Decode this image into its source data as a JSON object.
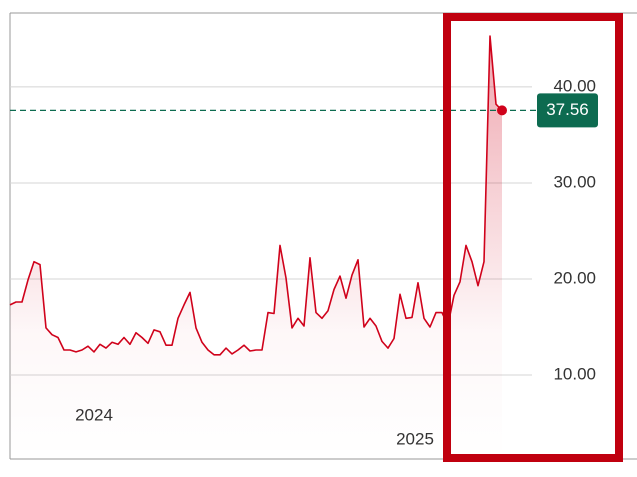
{
  "chart_data": {
    "type": "line",
    "x": [
      0,
      1,
      2,
      3,
      4,
      5,
      6,
      7,
      8,
      9,
      10,
      11,
      12,
      13,
      14,
      15,
      16,
      17,
      18,
      19,
      20,
      21,
      22,
      23,
      24,
      25,
      26,
      27,
      28,
      29,
      30,
      31,
      32,
      33,
      34,
      35,
      36,
      37,
      38,
      39,
      40,
      41,
      42,
      43,
      44,
      45,
      46,
      47,
      48,
      49,
      50,
      51,
      52,
      53,
      54,
      55,
      56,
      57,
      58,
      59,
      60,
      61,
      62,
      63,
      64,
      65,
      66,
      67,
      68,
      69,
      70,
      71,
      72,
      73,
      74,
      75,
      76,
      77,
      78,
      79,
      80,
      81,
      82
    ],
    "series": [
      {
        "color": "#d0021b",
        "values": [
          17.3,
          17.6,
          17.6,
          19.9,
          21.8,
          21.5,
          14.9,
          14.2,
          13.9,
          12.6,
          12.6,
          12.4,
          12.6,
          13.0,
          12.4,
          13.2,
          12.8,
          13.4,
          13.2,
          13.9,
          13.2,
          14.4,
          13.9,
          13.3,
          14.7,
          14.5,
          13.1,
          13.1,
          15.9,
          17.3,
          18.6,
          14.9,
          13.4,
          12.6,
          12.1,
          12.1,
          12.8,
          12.2,
          12.6,
          13.1,
          12.5,
          12.6,
          12.6,
          16.5,
          16.4,
          23.5,
          20.1,
          14.9,
          15.9,
          15.1,
          22.2,
          16.5,
          15.9,
          16.7,
          18.9,
          20.3,
          18.0,
          20.4,
          22.0,
          15.0,
          15.9,
          15.1,
          13.5,
          12.8,
          13.8,
          18.4,
          15.9,
          16.0,
          19.6,
          15.9,
          15.0,
          16.5,
          16.5,
          15.2,
          18.3,
          19.7,
          23.5,
          21.8,
          19.3,
          21.8,
          45.3,
          38.2,
          37.56
        ]
      }
    ],
    "xlim": [
      0,
      87
    ],
    "xticks": [
      {
        "value": 14,
        "label": "2024"
      },
      {
        "value": 67.5,
        "label": "2025"
      }
    ],
    "ylim": [
      1.25,
      47.7
    ],
    "yticks": [
      {
        "value": 10,
        "label": "10.00"
      },
      {
        "value": 20,
        "label": "20.00"
      },
      {
        "value": 30,
        "label": "30.00"
      },
      {
        "value": 40,
        "label": "40.00"
      }
    ],
    "grid": true,
    "last_price_color": "#0d6b50"
  }
}
